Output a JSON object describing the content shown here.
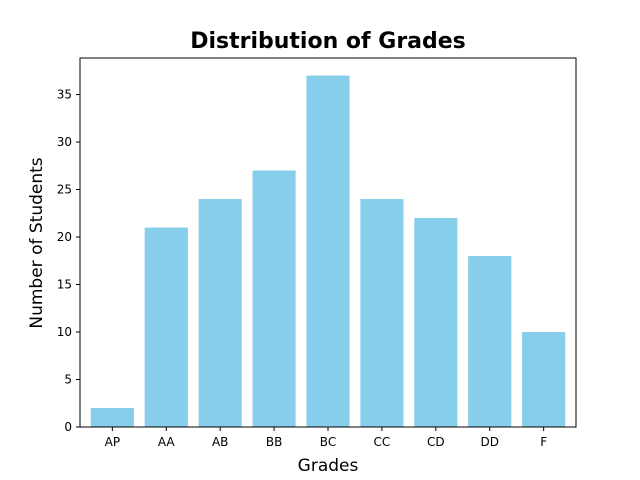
{
  "chart_data": {
    "type": "bar",
    "title": "Distribution of Grades",
    "xlabel": "Grades",
    "ylabel": "Number of Students",
    "categories": [
      "AP",
      "AA",
      "AB",
      "BB",
      "BC",
      "CC",
      "CD",
      "DD",
      "F"
    ],
    "values": [
      2,
      21,
      24,
      27,
      37,
      24,
      22,
      18,
      10
    ],
    "ylim": [
      0,
      38.85
    ],
    "yticks": [
      0,
      5,
      10,
      15,
      20,
      25,
      30,
      35
    ],
    "grid": false,
    "bar_color": "#87ceeb"
  }
}
